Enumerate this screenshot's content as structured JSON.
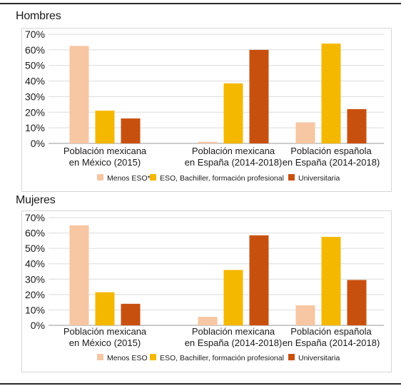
{
  "colors": {
    "menos": "#f7c6a3",
    "eso": "#f5b800",
    "universitaria": "#c8500f"
  },
  "chart_data": [
    {
      "type": "bar",
      "title": "Hombres",
      "categories": [
        [
          "Población mexicana",
          "en México (2015)"
        ],
        [
          "Población mexicana",
          "en España (2014-2018)"
        ],
        [
          "Población española",
          "en España (2014-2018)"
        ]
      ],
      "yticks": [
        "0%",
        "10%",
        "20%",
        "30%",
        "40%",
        "50%",
        "60%",
        "70%"
      ],
      "ylim": [
        0,
        70
      ],
      "grid": true,
      "legend_position": "bottom",
      "series": [
        {
          "name": "Menos ESO**",
          "color": "#f7c6a3",
          "values": [
            62.5,
            1,
            13.5
          ]
        },
        {
          "name": "ESO, Bachiller, formación profesional",
          "color": "#f5b800",
          "values": [
            21,
            38.5,
            64
          ]
        },
        {
          "name": "Universitaria",
          "color": "#c8500f",
          "values": [
            16,
            60,
            22
          ]
        }
      ]
    },
    {
      "type": "bar",
      "title": "Mujeres",
      "categories": [
        [
          "Población mexicana",
          "en México (2015)"
        ],
        [
          "Población mexicana",
          "en España (2014-2018)"
        ],
        [
          "Población española",
          "en España (2014-2018)"
        ]
      ],
      "yticks": [
        "0%",
        "10%",
        "20%",
        "30%",
        "40%",
        "50%",
        "60%",
        "70%"
      ],
      "ylim": [
        0,
        70
      ],
      "grid": true,
      "legend_position": "bottom",
      "series": [
        {
          "name": "Menos ESO",
          "color": "#f7c6a3",
          "values": [
            65,
            5.5,
            13
          ]
        },
        {
          "name": "ESO, Bachiller, formación profesional",
          "color": "#f5b800",
          "values": [
            21.5,
            36,
            57.5
          ]
        },
        {
          "name": "Universitaria",
          "color": "#c8500f",
          "values": [
            14,
            58.5,
            29.5
          ]
        }
      ]
    }
  ]
}
